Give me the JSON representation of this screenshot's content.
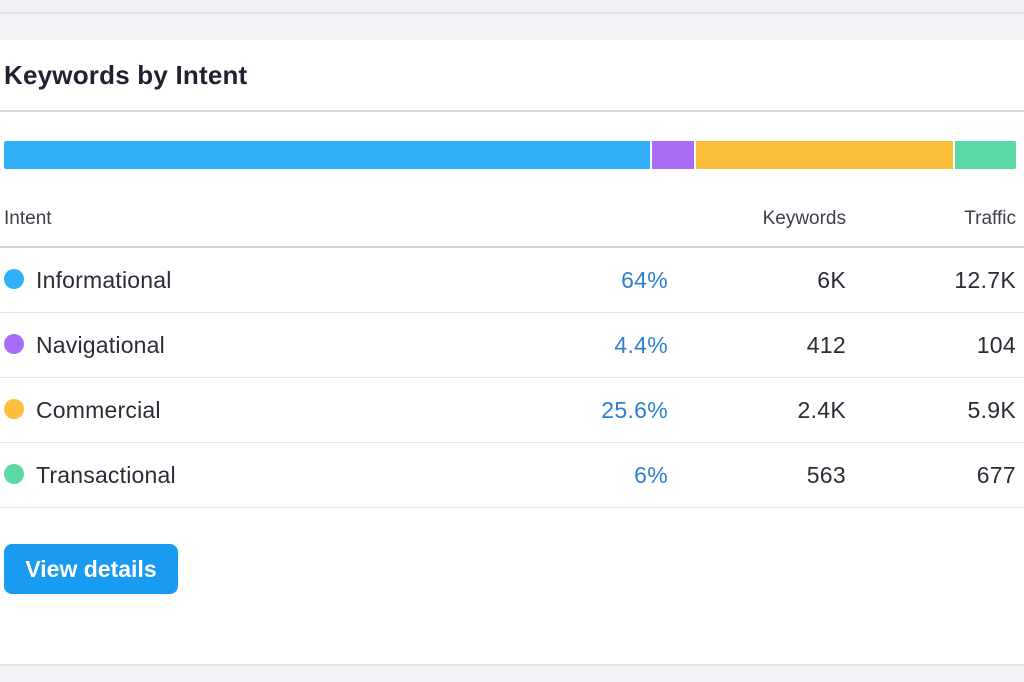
{
  "card": {
    "title": "Keywords by Intent"
  },
  "intent_bar": [
    {
      "name": "Informational",
      "share": 64,
      "color": "#2fb0f7"
    },
    {
      "name": "Navigational",
      "share": 4.4,
      "color": "#a86cf5"
    },
    {
      "name": "Commercial",
      "share": 25.6,
      "color": "#fbbf3b"
    },
    {
      "name": "Transactional",
      "share": 6,
      "color": "#5bd9a4"
    }
  ],
  "table": {
    "headers": {
      "intent": "Intent",
      "keywords": "Keywords",
      "traffic": "Traffic"
    },
    "rows": [
      {
        "label": "Informational",
        "percent": "64%",
        "keywords": "6K",
        "traffic": "12.7K",
        "color": "#2fb0f7"
      },
      {
        "label": "Navigational",
        "percent": "4.4%",
        "keywords": "412",
        "traffic": "104",
        "color": "#a86cf5"
      },
      {
        "label": "Commercial",
        "percent": "25.6%",
        "keywords": "2.4K",
        "traffic": "5.9K",
        "color": "#fbbf3b"
      },
      {
        "label": "Transactional",
        "percent": "6%",
        "keywords": "563",
        "traffic": "677",
        "color": "#5bd9a4"
      }
    ]
  },
  "actions": {
    "view_details": "View details"
  },
  "colors": {
    "accent": "#1a9bf2",
    "percent_text": "#2f7fce"
  }
}
